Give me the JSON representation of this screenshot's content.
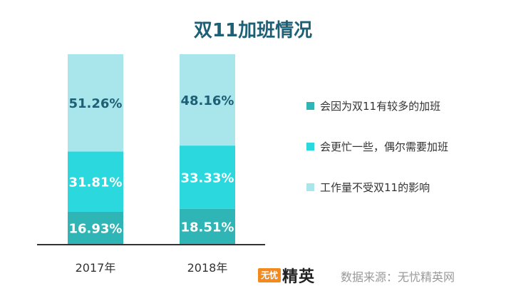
{
  "chart_data": {
    "type": "bar",
    "stacked": true,
    "title": "双11加班情况",
    "categories": [
      "2017年",
      "2018年"
    ],
    "series": [
      {
        "name": "会因为双11有较多的加班",
        "values": [
          16.93,
          18.51
        ],
        "labels": [
          "16.93%",
          "18.51%"
        ],
        "color": "#2fb5b5"
      },
      {
        "name": "会更忙一些，偶尔需要加班",
        "values": [
          31.81,
          33.33
        ],
        "labels": [
          "31.81%",
          "33.33%"
        ],
        "color": "#2ad8de"
      },
      {
        "name": "工作量不受双11的影响",
        "values": [
          51.26,
          48.16
        ],
        "labels": [
          "51.26%",
          "48.16%"
        ],
        "color": "#a9e6ec"
      }
    ],
    "ylim": [
      0,
      100
    ],
    "grid": false,
    "legend_position": "right"
  },
  "colors": {
    "title": "#1d5f74",
    "label_dark": "#1d5f74",
    "label_light": "#ffffff",
    "axis": "#333333",
    "brand_orange": "#f28a1e"
  },
  "brand": {
    "badge": "无忧",
    "name": "精英"
  },
  "source_note": "数据来源：无忧精英网"
}
